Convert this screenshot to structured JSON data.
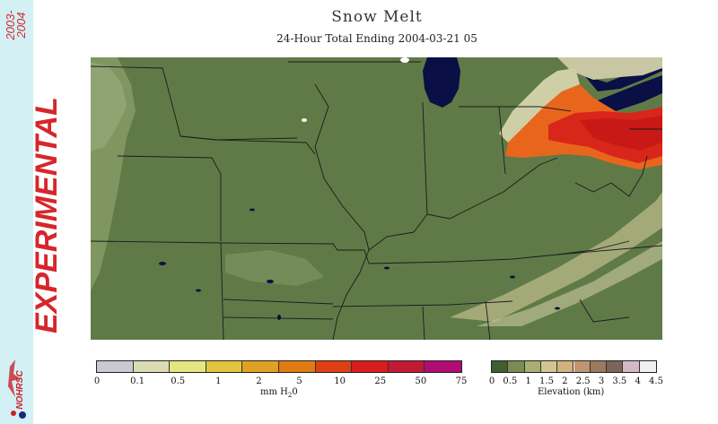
{
  "header": {
    "title": "Snow Melt",
    "subtitle": "24-Hour Total Ending 2004-03-21 05"
  },
  "side_banner": {
    "years_top": "2003-",
    "years_bottom": "2004",
    "status": "EXPERIMENTAL",
    "logo_text": "NOHRSC"
  },
  "melt_legend": {
    "unit_label": "mm H",
    "unit_sub": "2",
    "unit_end": "0",
    "ticks": [
      "0",
      "0.1",
      "0.5",
      "1",
      "2",
      "5",
      "10",
      "25",
      "50",
      "75"
    ],
    "colors": [
      "#c9c9d2",
      "#dcdcb3",
      "#e6e680",
      "#e2c43d",
      "#e0a023",
      "#e07a12",
      "#de3f14",
      "#d91c1c",
      "#c01a35",
      "#b00c73"
    ]
  },
  "elevation_legend": {
    "unit_label": "Elevation (km)",
    "ticks": [
      "0",
      "0.5",
      "1",
      "1.5",
      "2",
      "2.5",
      "3",
      "3.5",
      "4",
      "4.5"
    ],
    "colors": [
      "#3f5e32",
      "#7a8c52",
      "#a9ae74",
      "#cfc694",
      "#d2b27c",
      "#bf9670",
      "#9b7a5e",
      "#7d6456",
      "#d3b8c6",
      "#f2eff2"
    ]
  },
  "map_colors": {
    "land": "#5f7a47",
    "high_plains": "#7f9660",
    "water": "#0a0f45",
    "melt_orange": "#e8661c",
    "melt_red": "#d9261a",
    "melt_light": "#cfcfa6",
    "ontario": "#c9c6a3"
  }
}
